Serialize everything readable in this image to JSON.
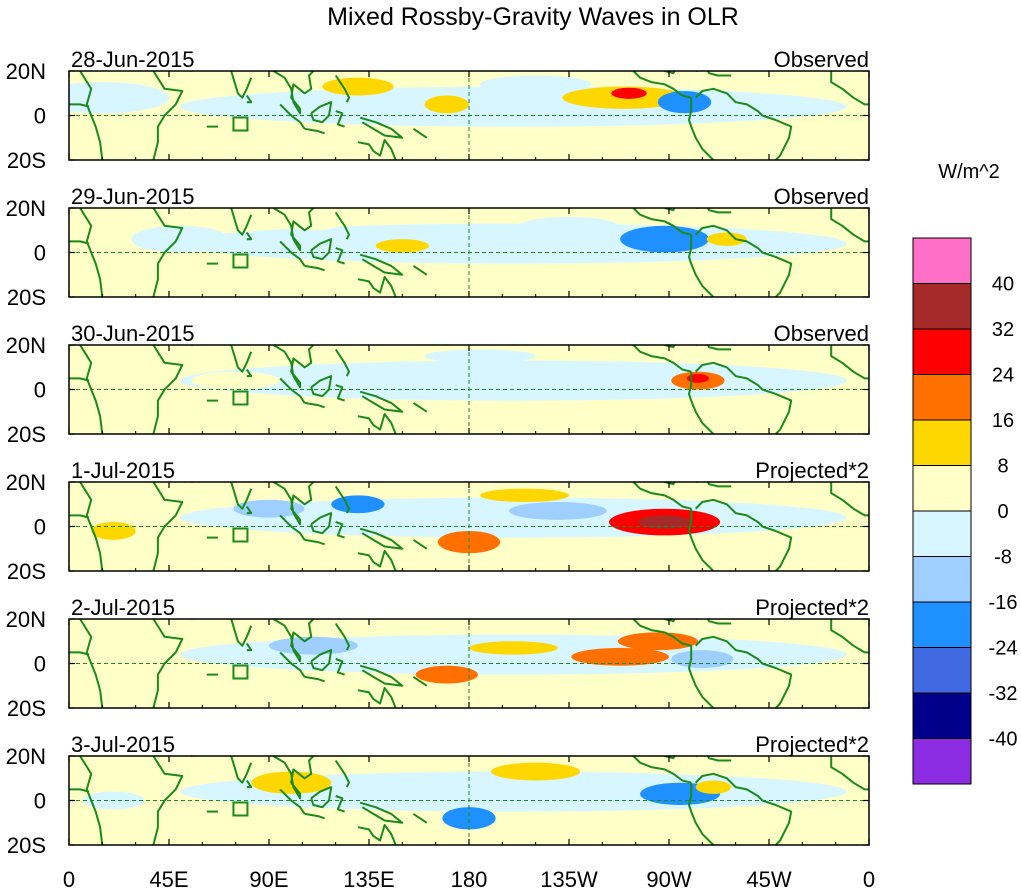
{
  "chart_data": {
    "type": "heatmap",
    "title": "Mixed Rossby-Gravity Waves in OLR",
    "units": "W/m^2",
    "x_ticks": [
      "0",
      "45E",
      "90E",
      "135E",
      "180",
      "135W",
      "90W",
      "45W",
      "0"
    ],
    "x_tick_lons": [
      0,
      45,
      90,
      135,
      180,
      225,
      270,
      315,
      360
    ],
    "y_ticks": [
      "20N",
      "0",
      "20S"
    ],
    "y_tick_lats": [
      20,
      0,
      -20
    ],
    "xlim": [
      0,
      360
    ],
    "ylim": [
      -20,
      20
    ],
    "colorbar": {
      "labels": [
        "40",
        "32",
        "24",
        "16",
        "8",
        "0",
        "-8",
        "-16",
        "-24",
        "-32",
        "-40"
      ],
      "colors": [
        "#ff6ec7",
        "#a52a2a",
        "#ff0000",
        "#ff7000",
        "#ffd700",
        "#ffffc8",
        "#d7f6ff",
        "#9ecfff",
        "#1e90ff",
        "#4169e1",
        "#00008b",
        "#8b2be2"
      ]
    },
    "land_color": "#1a8a1a",
    "panels": [
      {
        "date": "28-Jun-2015",
        "label": "Observed",
        "anomalies": [
          {
            "lon": 250,
            "lat": 8,
            "value": 12,
            "rx": 28,
            "ry": 5
          },
          {
            "lon": 252,
            "lat": 10,
            "value": 30,
            "rx": 8,
            "ry": 2.5
          },
          {
            "lon": 277,
            "lat": 6,
            "value": -18,
            "rx": 12,
            "ry": 5
          },
          {
            "lon": 170,
            "lat": 5,
            "value": 8,
            "rx": 10,
            "ry": 4
          },
          {
            "lon": 130,
            "lat": 13,
            "value": 8,
            "rx": 16,
            "ry": 4
          },
          {
            "lon": 15,
            "lat": 8,
            "value": -5,
            "rx": 30,
            "ry": 7
          },
          {
            "lon": 210,
            "lat": 14,
            "value": -5,
            "rx": 25,
            "ry": 4
          }
        ]
      },
      {
        "date": "29-Jun-2015",
        "label": "Observed",
        "anomalies": [
          {
            "lon": 268,
            "lat": 6,
            "value": -22,
            "rx": 20,
            "ry": 6
          },
          {
            "lon": 150,
            "lat": 3,
            "value": 8,
            "rx": 12,
            "ry": 3
          },
          {
            "lon": 296,
            "lat": 6,
            "value": 8,
            "rx": 9,
            "ry": 3
          },
          {
            "lon": 50,
            "lat": 6,
            "value": -6,
            "rx": 22,
            "ry": 6
          },
          {
            "lon": 225,
            "lat": 12,
            "value": -6,
            "rx": 22,
            "ry": 4
          },
          {
            "lon": 110,
            "lat": 14,
            "value": 5,
            "rx": 14,
            "ry": 4
          }
        ]
      },
      {
        "date": "30-Jun-2015",
        "label": "Observed",
        "anomalies": [
          {
            "lon": 283,
            "lat": 4,
            "value": 18,
            "rx": 12,
            "ry": 4
          },
          {
            "lon": 283,
            "lat": 5,
            "value": 28,
            "rx": 5,
            "ry": 2
          },
          {
            "lon": 75,
            "lat": 4,
            "value": 6,
            "rx": 20,
            "ry": 4
          },
          {
            "lon": 240,
            "lat": 2,
            "value": -6,
            "rx": 20,
            "ry": 4
          },
          {
            "lon": 10,
            "lat": 4,
            "value": 6,
            "rx": 14,
            "ry": 4
          },
          {
            "lon": 185,
            "lat": 15,
            "value": -5,
            "rx": 25,
            "ry": 3
          }
        ]
      },
      {
        "date": "1-Jul-2015",
        "label": "Projected*2",
        "anomalies": [
          {
            "lon": 268,
            "lat": 2,
            "value": 24,
            "rx": 25,
            "ry": 6
          },
          {
            "lon": 268,
            "lat": 2,
            "value": 33,
            "rx": 12,
            "ry": 3
          },
          {
            "lon": 180,
            "lat": -7,
            "value": 16,
            "rx": 14,
            "ry": 5
          },
          {
            "lon": 180,
            "lat": -7,
            "value": 20,
            "rx": 6,
            "ry": 2
          },
          {
            "lon": 220,
            "lat": 7,
            "value": -10,
            "rx": 22,
            "ry": 4
          },
          {
            "lon": 130,
            "lat": 10,
            "value": -18,
            "rx": 12,
            "ry": 4
          },
          {
            "lon": 205,
            "lat": 14,
            "value": 10,
            "rx": 20,
            "ry": 3
          },
          {
            "lon": 90,
            "lat": 8,
            "value": -12,
            "rx": 16,
            "ry": 4
          },
          {
            "lon": 20,
            "lat": -2,
            "value": 9,
            "rx": 10,
            "ry": 4
          }
        ]
      },
      {
        "date": "2-Jul-2015",
        "label": "Projected*2",
        "anomalies": [
          {
            "lon": 248,
            "lat": 3,
            "value": 17,
            "rx": 22,
            "ry": 4
          },
          {
            "lon": 265,
            "lat": 10,
            "value": 18,
            "rx": 18,
            "ry": 4
          },
          {
            "lon": 170,
            "lat": -5,
            "value": 18,
            "rx": 14,
            "ry": 4
          },
          {
            "lon": 285,
            "lat": 2,
            "value": -16,
            "rx": 14,
            "ry": 4
          },
          {
            "lon": 110,
            "lat": 8,
            "value": -10,
            "rx": 20,
            "ry": 4
          },
          {
            "lon": 200,
            "lat": 7,
            "value": 9,
            "rx": 20,
            "ry": 3
          }
        ]
      },
      {
        "date": "3-Jul-2015",
        "label": "Projected*2",
        "anomalies": [
          {
            "lon": 275,
            "lat": 3,
            "value": -24,
            "rx": 18,
            "ry": 5
          },
          {
            "lon": 180,
            "lat": -8,
            "value": -20,
            "rx": 12,
            "ry": 5
          },
          {
            "lon": 100,
            "lat": 8,
            "value": 10,
            "rx": 18,
            "ry": 5
          },
          {
            "lon": 290,
            "lat": 6,
            "value": 9,
            "rx": 8,
            "ry": 3
          },
          {
            "lon": 210,
            "lat": 13,
            "value": 8,
            "rx": 20,
            "ry": 4
          },
          {
            "lon": 20,
            "lat": 0,
            "value": -6,
            "rx": 14,
            "ry": 4
          }
        ]
      }
    ]
  }
}
